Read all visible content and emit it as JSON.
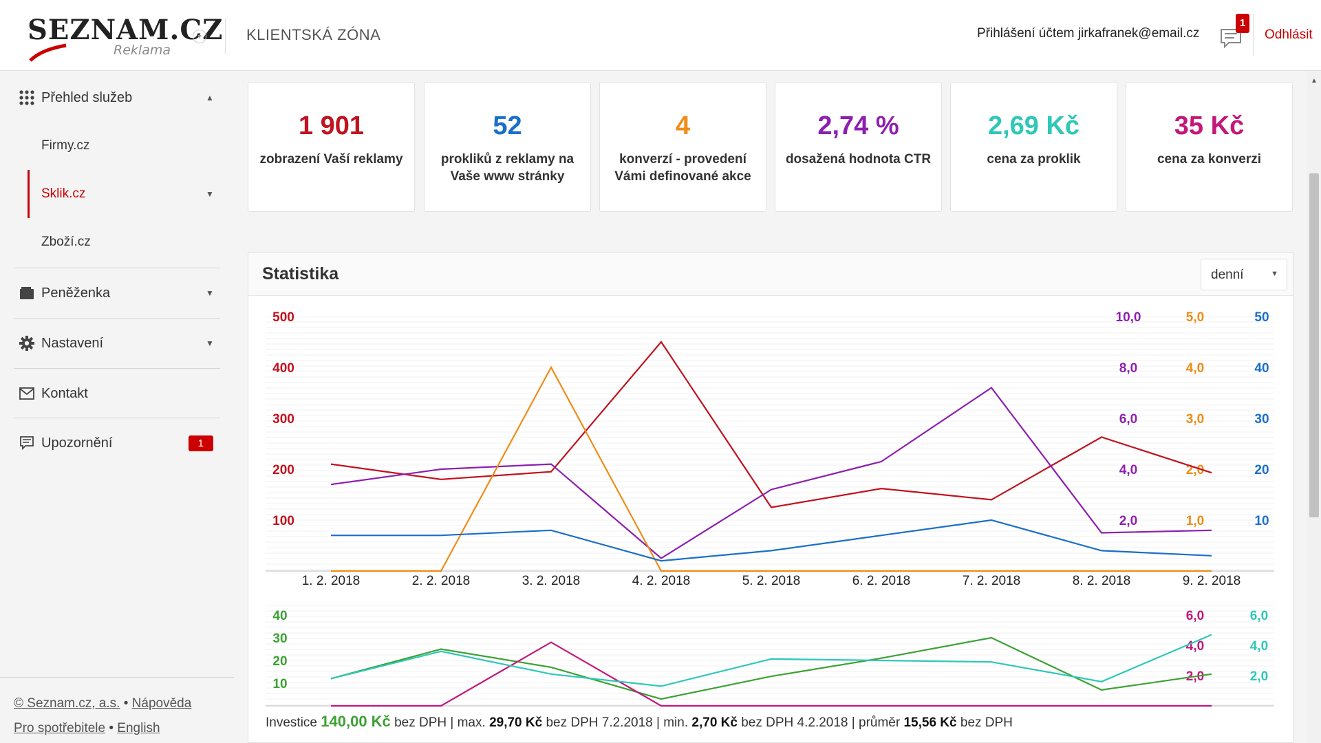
{
  "header": {
    "logo_text": "SEZNAM.CZ",
    "logo_sub": "Reklama",
    "zone_title": "KLIENTSKÁ ZÓNA",
    "user_info": "Přihlášení účtem jirkafranek@email.cz",
    "notifications_count": "1",
    "logout_label": "Odhlásit"
  },
  "sidebar": {
    "overview": {
      "label": "Přehled služeb",
      "arrow": "▲"
    },
    "sub": [
      {
        "label": "Firmy.cz",
        "arrow": ""
      },
      {
        "label": "Sklik.cz",
        "arrow": "▼"
      },
      {
        "label": "Zboží.cz",
        "arrow": ""
      }
    ],
    "wallet": {
      "label": "Peněženka",
      "arrow": "▼"
    },
    "settings": {
      "label": "Nastavení",
      "arrow": "▼"
    },
    "contact": {
      "label": "Kontakt"
    },
    "alerts": {
      "label": "Upozornění",
      "badge": "1"
    },
    "footer": {
      "copyright": "© Seznam.cz, a.s.",
      "help": "Nápověda",
      "consumers": "Pro spotřebitele",
      "english": "English",
      "sep": "•"
    }
  },
  "cards": [
    {
      "value": "1 901",
      "desc": "zobrazení Vaší reklamy",
      "color": "#c0121f"
    },
    {
      "value": "52",
      "desc": "prokliků z reklamy na Vaše www stránky",
      "color": "#1a6fc9"
    },
    {
      "value": "4",
      "desc": "konverzí - provedení Vámi definované akce",
      "color": "#f08c17"
    },
    {
      "value": "2,74 %",
      "desc": "dosažená hodnota CTR",
      "color": "#8d1fb0"
    },
    {
      "value": "2,69 Kč",
      "desc": "cena za proklik",
      "color": "#2ec8b8"
    },
    {
      "value": "35 Kč",
      "desc": "cena za konverzi",
      "color": "#c4177a"
    }
  ],
  "panel": {
    "title": "Statistika",
    "period": "denní"
  },
  "footer_stats": {
    "invest_label": "Investice",
    "invest_value": "140,00 Kč",
    "vat": "bez DPH",
    "max_label": "| max.",
    "max_value": "29,70 Kč",
    "max_date": "bez DPH 7.2.2018",
    "min_label": "| min.",
    "min_value": "2,70 Kč",
    "min_date": "bez DPH 4.2.2018",
    "avg_label": "| průměr",
    "avg_value": "15,56 Kč",
    "avg_vat": "bez DPH"
  },
  "colors": {
    "red": "#c0121f",
    "blue": "#1a6fc9",
    "orange": "#f08c17",
    "purple": "#8d1fb0",
    "green": "#3da135",
    "teal": "#2ec8b8",
    "magenta": "#c4177a"
  },
  "chart_data": [
    {
      "type": "line",
      "categories": [
        "1. 2. 2018",
        "2. 2. 2018",
        "3. 2. 2018",
        "4. 2. 2018",
        "5. 2. 2018",
        "6. 2. 2018",
        "7. 2. 2018",
        "8. 2. 2018",
        "9. 2. 2018"
      ],
      "axes": [
        {
          "ticks": [
            "100",
            "200",
            "300",
            "400",
            "500"
          ],
          "color": "#c0121f",
          "side": "left",
          "ylim": [
            0,
            500
          ]
        },
        {
          "ticks": [
            "2,0",
            "4,0",
            "6,0",
            "8,0",
            "10,0"
          ],
          "color": "#8d1fb0",
          "side": "right",
          "ylim": [
            0,
            10
          ]
        },
        {
          "ticks": [
            "1,0",
            "2,0",
            "3,0",
            "4,0",
            "5,0"
          ],
          "color": "#f08c17",
          "side": "right",
          "ylim": [
            0,
            5
          ]
        },
        {
          "ticks": [
            "10",
            "20",
            "30",
            "40",
            "50"
          ],
          "color": "#1a6fc9",
          "side": "right",
          "ylim": [
            0,
            50
          ]
        }
      ],
      "series": [
        {
          "values": [
            210,
            180,
            195,
            450,
            125,
            162,
            140,
            263,
            193
          ],
          "axis": 0,
          "color": "#c0121f"
        },
        {
          "values": [
            3.4,
            4.0,
            4.2,
            0.5,
            3.2,
            4.3,
            7.2,
            1.5,
            1.6
          ],
          "axis": 1,
          "color": "#8d1fb0"
        },
        {
          "values": [
            0,
            0,
            4.0,
            0,
            0,
            0,
            0,
            0,
            0
          ],
          "axis": 2,
          "color": "#f08c17"
        },
        {
          "values": [
            7,
            7,
            8,
            2,
            4,
            7,
            10,
            4,
            3
          ],
          "axis": 3,
          "color": "#1a6fc9"
        }
      ]
    },
    {
      "type": "line",
      "axes": [
        {
          "ticks": [
            "10",
            "20",
            "30",
            "40"
          ],
          "color": "#3da135",
          "side": "left",
          "ylim": [
            0,
            40
          ]
        },
        {
          "ticks": [
            "2,0",
            "4,0",
            "6,0"
          ],
          "color": "#c4177a",
          "side": "right",
          "ylim": [
            0,
            6
          ]
        },
        {
          "ticks": [
            "2,0",
            "4,0",
            "6,0"
          ],
          "color": "#2ec8b8",
          "side": "right",
          "ylim": [
            0,
            6
          ]
        }
      ],
      "series": [
        {
          "values": [
            12,
            25,
            17,
            3,
            13,
            21,
            30,
            7,
            14
          ],
          "axis": 0,
          "color": "#3da135"
        },
        {
          "values": [
            0,
            0,
            4.2,
            0,
            0,
            0,
            0,
            0,
            0
          ],
          "axis": 1,
          "color": "#c4177a"
        },
        {
          "values": [
            1.8,
            3.6,
            2.1,
            1.3,
            3.1,
            3.0,
            2.9,
            1.6,
            4.7
          ],
          "axis": 2,
          "color": "#2ec8b8"
        }
      ]
    }
  ]
}
